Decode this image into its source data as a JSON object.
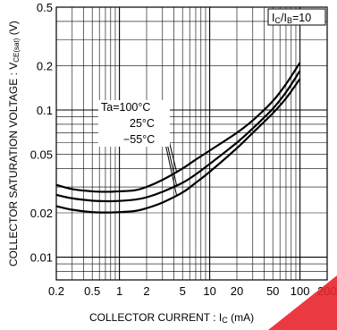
{
  "chart_data": {
    "type": "line",
    "x_scale": "log",
    "y_scale": "log",
    "xlim": [
      0.2,
      200
    ],
    "ylim": [
      0.007,
      0.5
    ],
    "grid": true,
    "xlabel": {
      "main": "COLLECTOR  CURRENT : I",
      "sub": "C",
      "unit": " (mA)"
    },
    "ylabel": {
      "main": "COLLECTOR  SATURATION  VOLTAGE : V",
      "sub": "CE(sat)",
      "unit": " (V)"
    },
    "x_ticks": [
      {
        "value": 0.2,
        "label": "0.2"
      },
      {
        "value": 0.5,
        "label": "0.5"
      },
      {
        "value": 1,
        "label": "1"
      },
      {
        "value": 2,
        "label": "2"
      },
      {
        "value": 5,
        "label": "5"
      },
      {
        "value": 10,
        "label": "10"
      },
      {
        "value": 20,
        "label": "20"
      },
      {
        "value": 50,
        "label": "50"
      },
      {
        "value": 100,
        "label": "100"
      },
      {
        "value": 200,
        "label": "200"
      }
    ],
    "y_ticks": [
      {
        "value": 0.01,
        "label": "0.01"
      },
      {
        "value": 0.02,
        "label": "0.02"
      },
      {
        "value": 0.05,
        "label": "0.05"
      },
      {
        "value": 0.1,
        "label": "0.1"
      },
      {
        "value": 0.2,
        "label": "0.2"
      },
      {
        "value": 0.5,
        "label": "0.5"
      }
    ],
    "condition": {
      "main": "I",
      "sub1": "C",
      "mid": "/I",
      "sub2": "B",
      "tail": "=10"
    },
    "series": [
      {
        "name": "Ta=100°C",
        "x": [
          0.2,
          0.3,
          0.5,
          0.7,
          1,
          1.5,
          2,
          3,
          5,
          7,
          10,
          20,
          30,
          50,
          70,
          100
        ],
        "y": [
          0.031,
          0.029,
          0.028,
          0.0278,
          0.028,
          0.0285,
          0.03,
          0.0335,
          0.04,
          0.046,
          0.053,
          0.07,
          0.085,
          0.115,
          0.15,
          0.21
        ]
      },
      {
        "name": "25°C",
        "x": [
          0.2,
          0.3,
          0.5,
          0.7,
          1,
          1.5,
          2,
          3,
          5,
          7,
          10,
          20,
          30,
          50,
          70,
          100
        ],
        "y": [
          0.0265,
          0.0251,
          0.0242,
          0.024,
          0.0241,
          0.0246,
          0.0255,
          0.0278,
          0.032,
          0.0365,
          0.043,
          0.06,
          0.075,
          0.102,
          0.132,
          0.185
        ]
      },
      {
        "name": "−55°C",
        "x": [
          0.2,
          0.3,
          0.5,
          0.7,
          1,
          1.5,
          2,
          3,
          5,
          7,
          10,
          20,
          30,
          50,
          70,
          100
        ],
        "y": [
          0.0222,
          0.021,
          0.0202,
          0.0201,
          0.0202,
          0.0206,
          0.0215,
          0.0235,
          0.0275,
          0.032,
          0.038,
          0.055,
          0.07,
          0.095,
          0.12,
          0.163
        ]
      }
    ]
  }
}
